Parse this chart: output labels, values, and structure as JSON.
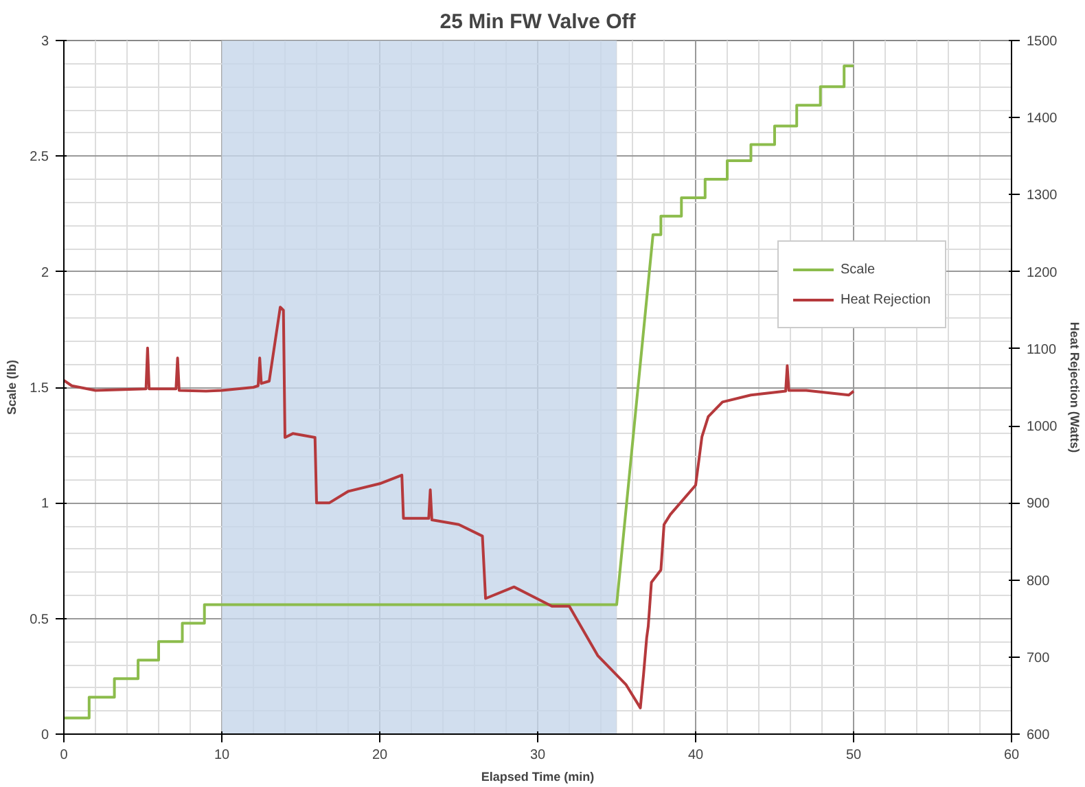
{
  "chart_data": {
    "type": "line",
    "title": "25 Min FW Valve Off",
    "xlabel": "Elapsed Time (min)",
    "ylabel": "Scale (lb)",
    "y2label": "Heat Rejection (Watts)",
    "xlim": [
      0,
      60
    ],
    "xticks": [
      0,
      10,
      20,
      30,
      40,
      50,
      60
    ],
    "ylim": [
      0,
      3
    ],
    "yticks": [
      0,
      0.5,
      1,
      1.5,
      2,
      2.5,
      3
    ],
    "y2lim": [
      600,
      1500
    ],
    "y2ticks": [
      600,
      700,
      800,
      900,
      1000,
      1100,
      1200,
      1300,
      1400,
      1500
    ],
    "grid": true,
    "legend": "right",
    "line_style": "solid",
    "bands": [
      {
        "axis": "x",
        "from": 10,
        "to": 35,
        "color": "#c6d6ea"
      }
    ],
    "series": [
      {
        "name": "Scale",
        "color": "#8cbc4c",
        "x": [
          0,
          1.6,
          1.6,
          3.2,
          3.2,
          4.7,
          4.7,
          6.0,
          6.0,
          7.5,
          7.5,
          8.9,
          8.9,
          35,
          37.3,
          37.8,
          37.8,
          39.1,
          39.1,
          40.6,
          40.6,
          42,
          42,
          43.5,
          43.5,
          45,
          45,
          46.4,
          46.4,
          47.9,
          47.9,
          49.4,
          49.4,
          50
        ],
        "values": [
          0.07,
          0.07,
          0.16,
          0.16,
          0.24,
          0.24,
          0.32,
          0.32,
          0.4,
          0.4,
          0.48,
          0.48,
          0.56,
          0.56,
          2.16,
          2.16,
          2.24,
          2.24,
          2.32,
          2.32,
          2.4,
          2.4,
          2.48,
          2.48,
          2.55,
          2.55,
          2.63,
          2.63,
          2.72,
          2.72,
          2.8,
          2.8,
          2.89,
          2.89
        ]
      },
      {
        "name": "Heat Rejection",
        "color": "#b5393c",
        "axis": "y2",
        "x": [
          0,
          0.5,
          2,
          5.2,
          5.3,
          5.4,
          7.1,
          7.2,
          7.3,
          9,
          10,
          12,
          12.3,
          12.4,
          12.5,
          13,
          13.7,
          13.9,
          14.0,
          14.5,
          15.9,
          16.0,
          16.8,
          18,
          20,
          21.4,
          21.5,
          23.1,
          23.2,
          23.3,
          25,
          26.5,
          26.7,
          28.5,
          30.9,
          32,
          33.8,
          35.6,
          36.5,
          36.7,
          36.9,
          37.0,
          37.2,
          37.8,
          38.0,
          38.4,
          40.0,
          40.4,
          40.8,
          41.7,
          43.5,
          45.7,
          45.8,
          45.9,
          47,
          49.7,
          50
        ],
        "values": [
          1059,
          1052,
          1046,
          1048,
          1101,
          1048,
          1048,
          1088,
          1046,
          1045,
          1046,
          1050,
          1052,
          1088,
          1055,
          1058,
          1154,
          1150,
          985,
          990,
          985,
          900,
          900,
          915,
          925,
          936,
          880,
          880,
          917,
          878,
          872,
          857,
          776,
          791,
          766,
          766,
          702,
          664,
          634,
          677,
          725,
          740,
          797,
          813,
          872,
          885,
          923,
          986,
          1012,
          1031,
          1040,
          1045,
          1078,
          1046,
          1046,
          1040,
          1045
        ]
      }
    ]
  }
}
